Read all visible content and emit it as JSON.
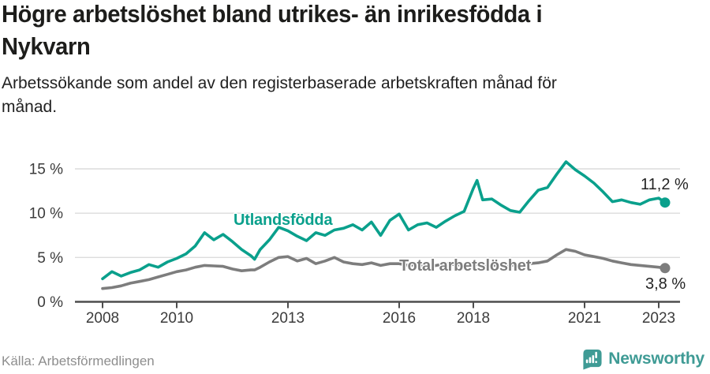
{
  "header": {
    "title": "Högre arbetslöshet bland utrikes- än inrikesfödda i\nNykvarn",
    "subtitle": "Arbetssökande som andel av den registerbaserade arbetskraften månad för\nmånad."
  },
  "footer": {
    "source": "Källa: Arbetsförmedlingen",
    "brand": "Newsworthy"
  },
  "chart_data": {
    "type": "line",
    "title": "Högre arbetslöshet bland utrikes- än inrikesfödda i Nykvarn",
    "xlabel": "",
    "ylabel": "Arbetssökande som andel av den registerbaserade arbetskraften",
    "x_unit": "decimal year (monthly series, sampled)",
    "xlim": [
      2007.3,
      2023.7
    ],
    "ylim": [
      0,
      16.5
    ],
    "grid": "horizontal",
    "x": [
      2008,
      2008.25,
      2008.5,
      2008.75,
      2009,
      2009.25,
      2009.5,
      2009.75,
      2010,
      2010.25,
      2010.5,
      2010.75,
      2011,
      2011.25,
      2011.5,
      2011.75,
      2012,
      2012.1,
      2012.25,
      2012.5,
      2012.75,
      2013,
      2013.25,
      2013.5,
      2013.75,
      2014,
      2014.25,
      2014.5,
      2014.75,
      2015,
      2015.25,
      2015.5,
      2015.75,
      2016,
      2016.25,
      2016.5,
      2016.75,
      2017,
      2017.25,
      2017.5,
      2017.75,
      2018,
      2018.1,
      2018.25,
      2018.5,
      2018.75,
      2019,
      2019.25,
      2019.5,
      2019.75,
      2020,
      2020.25,
      2020.5,
      2020.75,
      2021,
      2021.25,
      2021.5,
      2021.75,
      2022,
      2022.25,
      2022.5,
      2022.75,
      2023,
      2023.17
    ],
    "series": [
      {
        "name": "Utlandsfödda",
        "color": "#0aa08c",
        "end_label": "11,2 %",
        "end_value": 11.2,
        "values": [
          2.6,
          3.4,
          2.9,
          3.3,
          3.6,
          4.2,
          3.9,
          4.5,
          4.9,
          5.4,
          6.3,
          7.8,
          7.0,
          7.6,
          6.8,
          5.9,
          5.2,
          4.8,
          5.9,
          7.0,
          8.4,
          8.0,
          7.4,
          6.9,
          7.8,
          7.5,
          8.1,
          8.3,
          8.7,
          8.1,
          9.0,
          7.5,
          9.2,
          9.9,
          8.1,
          8.7,
          8.9,
          8.4,
          9.1,
          9.7,
          10.2,
          12.8,
          13.7,
          11.5,
          11.6,
          10.9,
          10.3,
          10.1,
          11.4,
          12.6,
          12.9,
          14.4,
          15.8,
          14.9,
          14.2,
          13.4,
          12.4,
          11.3,
          11.5,
          11.2,
          11.0,
          11.5,
          11.7,
          11.2
        ]
      },
      {
        "name": "Total arbetslöshet",
        "color": "#7d7d7d",
        "end_label": "3,8 %",
        "end_value": 3.8,
        "values": [
          1.5,
          1.6,
          1.8,
          2.1,
          2.3,
          2.5,
          2.8,
          3.1,
          3.4,
          3.6,
          3.9,
          4.1,
          4.05,
          4.0,
          3.7,
          3.5,
          3.6,
          3.6,
          3.9,
          4.5,
          5.0,
          5.1,
          4.6,
          4.9,
          4.3,
          4.6,
          5.0,
          4.5,
          4.3,
          4.2,
          4.4,
          4.1,
          4.3,
          4.3,
          4.1,
          4.2,
          4.0,
          4.1,
          4.3,
          4.2,
          4.1,
          4.2,
          4.2,
          4.0,
          4.1,
          4.2,
          4.1,
          4.2,
          4.3,
          4.4,
          4.6,
          5.3,
          5.9,
          5.7,
          5.3,
          5.1,
          4.9,
          4.6,
          4.4,
          4.2,
          4.1,
          4.0,
          3.9,
          3.8
        ]
      }
    ],
    "yticks": {
      "values": [
        15,
        10,
        5,
        0
      ],
      "labels": [
        "15 %",
        "10 %",
        "5 %",
        "0 %"
      ]
    },
    "xticks": {
      "values": [
        2008,
        2010,
        2013,
        2016,
        2018,
        2021,
        2023
      ],
      "labels": [
        "2008",
        "2010",
        "2013",
        "2016",
        "2018",
        "2021",
        "2023"
      ]
    },
    "legend_position": "inline-labels",
    "colors": {
      "axis": "#4d4d4d",
      "grid": "#dcdcdc",
      "tick_text": "#3b3b3b",
      "value_label_text": "#242424"
    }
  }
}
